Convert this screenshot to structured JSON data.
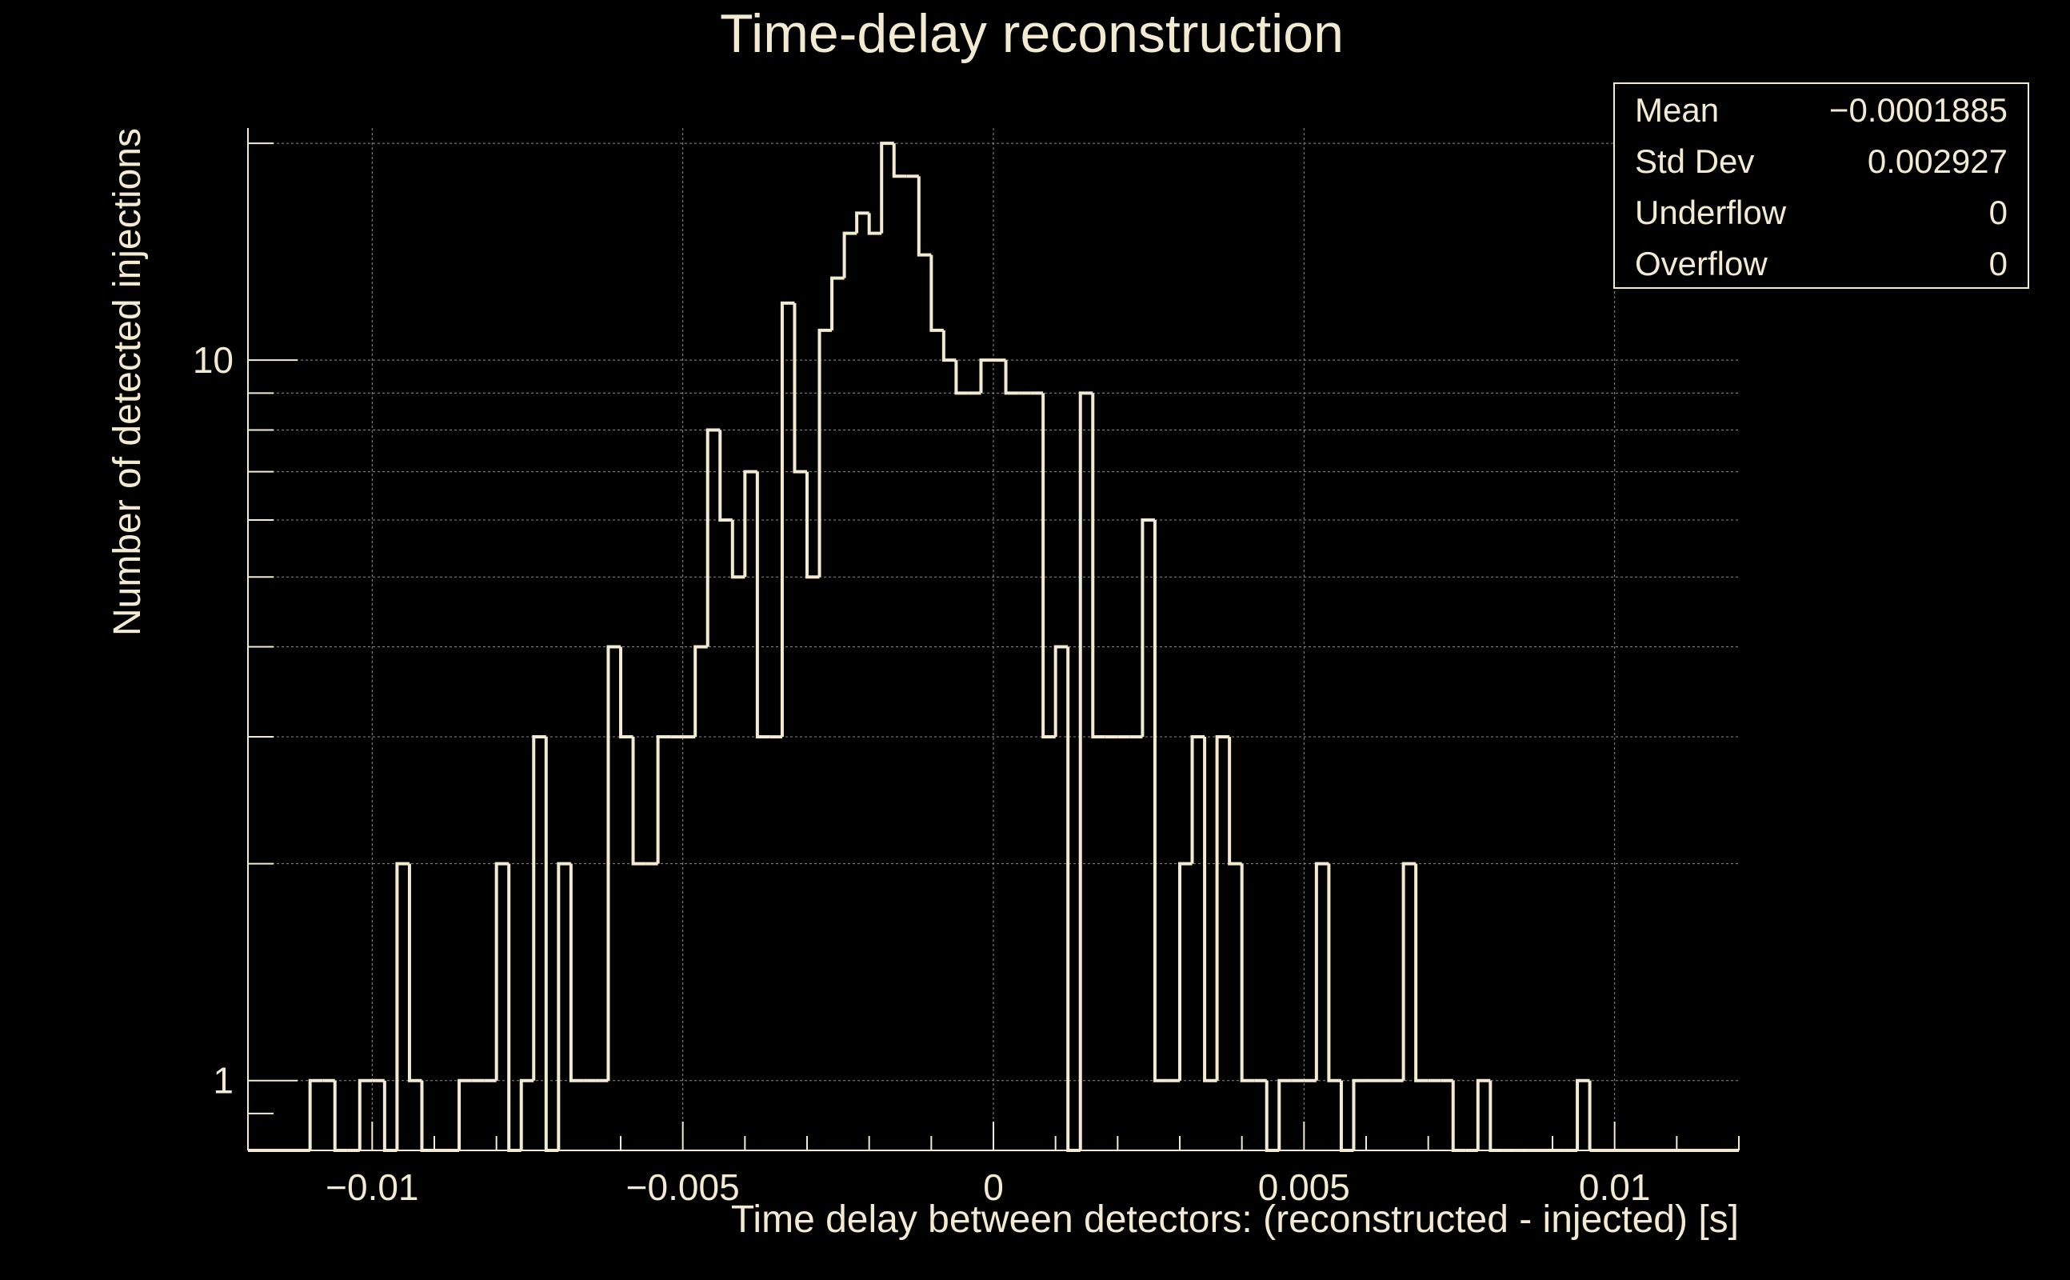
{
  "chart_data": {
    "type": "histogram",
    "title": "Time-delay reconstruction",
    "xlabel": "Time delay between detectors: (reconstructed - injected) [s]",
    "ylabel": "Number of detected injections",
    "log_y": true,
    "xlim": [
      -0.012,
      0.012
    ],
    "ylim": [
      0.8,
      21
    ],
    "grid": true,
    "bin_width": 0.0002,
    "bin_start": -0.011,
    "counts": [
      1,
      1,
      0,
      0,
      1,
      1,
      0,
      2,
      1,
      0,
      0,
      0,
      1,
      1,
      1,
      2,
      0,
      1,
      3,
      0,
      2,
      1,
      1,
      1,
      4,
      3,
      2,
      2,
      3,
      3,
      3,
      4,
      8,
      6,
      5,
      7,
      3,
      3,
      12,
      7,
      5,
      11,
      13,
      15,
      16,
      15,
      20,
      18,
      18,
      14,
      11,
      10,
      9,
      9,
      10,
      10,
      9,
      9,
      9,
      3,
      4,
      0,
      9,
      3,
      3,
      3,
      3,
      6,
      1,
      1,
      2,
      3,
      1,
      3,
      2,
      1,
      1,
      0,
      1,
      1,
      1,
      2,
      1,
      0,
      1,
      1,
      1,
      1,
      2,
      1,
      1,
      1,
      0,
      0,
      1,
      0,
      0,
      0,
      0,
      0,
      0,
      0,
      1
    ],
    "x_ticks": [
      -0.01,
      -0.005,
      0,
      0.005,
      0.01
    ],
    "x_tick_labels": [
      "−0.01",
      "−0.005",
      "0",
      "0.005",
      "0.01"
    ],
    "y_ticks": [
      1,
      10
    ],
    "y_tick_labels": [
      "1",
      "10"
    ],
    "stats": [
      {
        "label": "Mean",
        "value": "−0.0001885"
      },
      {
        "label": "Std Dev",
        "value": "0.002927"
      },
      {
        "label": "Underflow",
        "value": "0"
      },
      {
        "label": "Overflow",
        "value": "0"
      }
    ],
    "colors": {
      "background": "#000000",
      "foreground": "#f3ead2",
      "grid": "#8c8c8c"
    }
  }
}
